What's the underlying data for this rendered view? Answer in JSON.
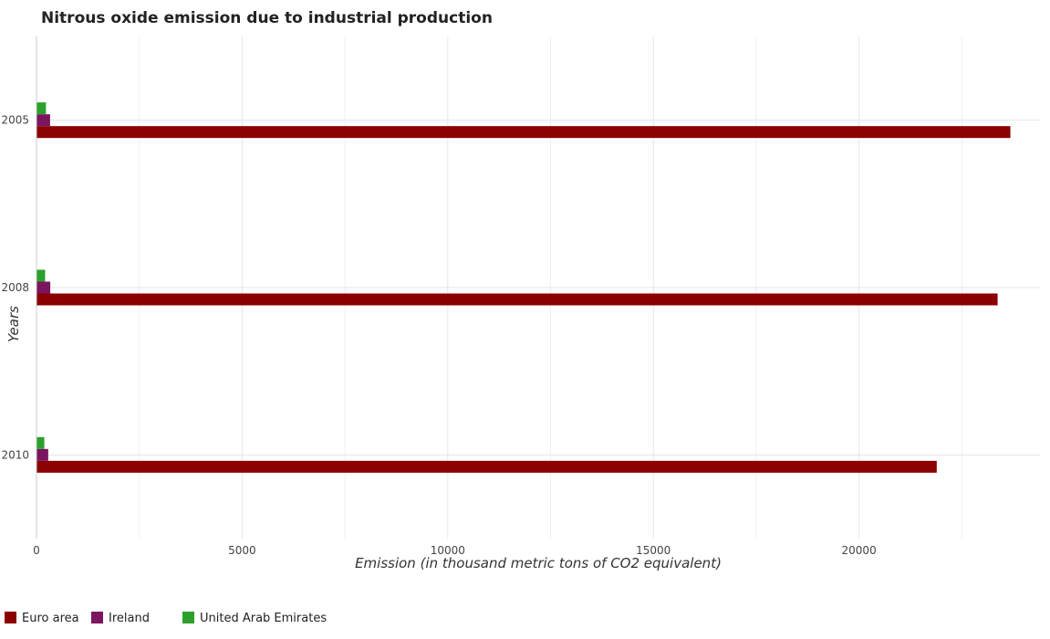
{
  "chart_data": {
    "type": "bar",
    "orientation": "horizontal",
    "title": "Nitrous oxide emission due to industrial production",
    "xlabel": "Emission (in thousand metric tons of CO2 equivalent)",
    "ylabel": "Years",
    "categories": [
      "2005",
      "2008",
      "2010"
    ],
    "series": [
      {
        "name": "Euro area",
        "color": "#8b0000",
        "values": [
          23680,
          23370,
          21890
        ]
      },
      {
        "name": "Ireland",
        "color": "#7b1560",
        "values": [
          330,
          335,
          285
        ]
      },
      {
        "name": "United Arab Emirates",
        "color": "#2ca02c",
        "values": [
          230,
          210,
          190
        ]
      }
    ],
    "xlim": [
      0,
      24400
    ],
    "xticks": [
      0,
      5000,
      10000,
      15000,
      20000
    ],
    "grid": true,
    "legend_position": "bottom-left"
  }
}
